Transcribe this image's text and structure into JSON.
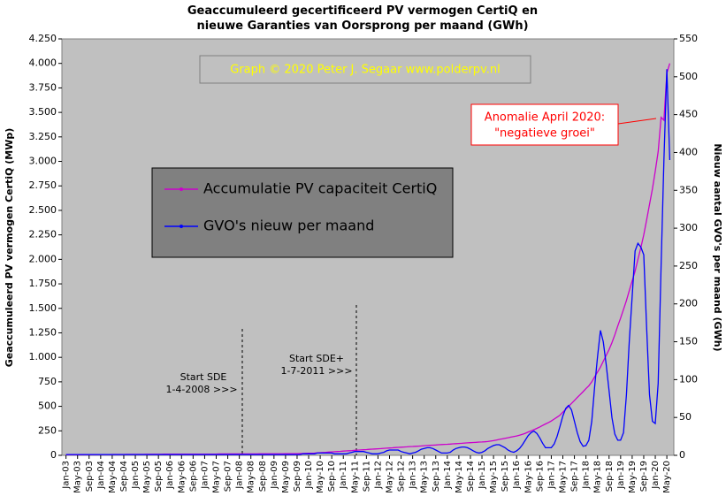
{
  "chart_data": {
    "type": "line",
    "title": "Geaccumuleerd gecertificeerd PV vermogen CertiQ en",
    "subtitle": "nieuwe Garanties van Oorsprong per maand (GWh)",
    "ylabel": "Geaccumuleerd PV vermogen CertiQ (MWp)",
    "y2label": "Nieuw aantal GVO's per maand (GWh)",
    "annotations": [
      "Graph  © 2020  Peter J. Segaar  www.polderpv.nl",
      "Anomalie  April 2020:",
      "\"negatieve groei\"",
      "Start SDE",
      "1-4-2008  >>>",
      "Start SDE+",
      "1-7-2011  >>>"
    ],
    "categories": [
      "Jan-03",
      null,
      null,
      null,
      "May-03",
      null,
      null,
      null,
      "Sep-03",
      null,
      null,
      null,
      "Jan-04",
      null,
      null,
      null,
      "May-04",
      null,
      null,
      null,
      "Sep-04",
      null,
      null,
      null,
      "Jan-05",
      null,
      null,
      null,
      "May-05",
      null,
      null,
      null,
      "Sep-05",
      null,
      null,
      null,
      "Jan-06",
      null,
      null,
      null,
      "May-06",
      null,
      null,
      null,
      "Sep-06",
      null,
      null,
      null,
      "Jan-07",
      null,
      null,
      null,
      "May-07",
      null,
      null,
      null,
      "Sep-07",
      null,
      null,
      null,
      "Jan-08",
      null,
      null,
      null,
      "May-08",
      null,
      null,
      null,
      "Sep-08",
      null,
      null,
      null,
      "Jan-09",
      null,
      null,
      null,
      "May-09",
      null,
      null,
      null,
      "Sep-09",
      null,
      null,
      null,
      "Jan-10",
      null,
      null,
      null,
      "May-10",
      null,
      null,
      null,
      "Sep-10",
      null,
      null,
      null,
      "Jan-11",
      null,
      null,
      null,
      "May-11",
      null,
      null,
      null,
      "Sep-11",
      null,
      null,
      null,
      "Jan-12",
      null,
      null,
      null,
      "May-12",
      null,
      null,
      null,
      "Sep-12",
      null,
      null,
      null,
      "Jan-13",
      null,
      null,
      null,
      "May-13",
      null,
      null,
      null,
      "Sep-13",
      null,
      null,
      null,
      "Jan-14",
      null,
      null,
      null,
      "May-14",
      null,
      null,
      null,
      "Sep-14",
      null,
      null,
      null,
      "Jan-15",
      null,
      null,
      null,
      "May-15",
      null,
      null,
      null,
      "Sep-15",
      null,
      null,
      null,
      "Jan-16",
      null,
      null,
      null,
      "May-16",
      null,
      null,
      null,
      "Sep-16",
      null,
      null,
      null,
      "Jan-17",
      null,
      null,
      null,
      "May-17",
      null,
      null,
      null,
      "Sep-17",
      null,
      null,
      null,
      "Jan-18",
      null,
      null,
      null,
      "May-18",
      null,
      null,
      null,
      "Sep-18",
      null,
      null,
      null,
      "Jan-19",
      null,
      null,
      null,
      "May-19",
      null,
      null,
      null,
      "Sep-19",
      null,
      null,
      null,
      "Jan-20",
      null,
      null,
      null,
      "May-20",
      null
    ],
    "series": [
      {
        "name": "Accumulatie PV capaciteit CertiQ",
        "color": "#cc00cc",
        "axis": "y",
        "values": [
          5,
          5,
          5,
          6,
          6,
          6,
          6,
          7,
          7,
          7,
          7,
          8,
          8,
          8,
          8,
          8,
          9,
          9,
          9,
          9,
          9,
          10,
          10,
          10,
          10,
          10,
          10,
          10,
          11,
          11,
          11,
          11,
          11,
          11,
          12,
          12,
          12,
          12,
          12,
          12,
          12,
          12,
          13,
          13,
          13,
          13,
          13,
          13,
          13,
          13,
          13,
          13,
          13,
          14,
          14,
          14,
          14,
          14,
          14,
          14,
          14,
          14,
          14,
          14,
          14,
          14,
          14,
          15,
          15,
          15,
          15,
          15,
          15,
          15,
          15,
          15,
          16,
          16,
          16,
          16,
          17,
          18,
          19,
          20,
          21,
          22,
          23,
          25,
          27,
          29,
          31,
          33,
          35,
          37,
          39,
          41,
          43,
          45,
          47,
          49,
          51,
          53,
          55,
          57,
          59,
          61,
          63,
          65,
          67,
          69,
          71,
          73,
          75,
          77,
          79,
          81,
          83,
          85,
          87,
          89,
          90,
          92,
          94,
          96,
          98,
          100,
          102,
          104,
          106,
          108,
          110,
          112,
          113,
          115,
          117,
          119,
          121,
          123,
          125,
          127,
          129,
          131,
          133,
          135,
          136,
          138,
          141,
          145,
          150,
          156,
          162,
          168,
          174,
          180,
          186,
          192,
          198,
          205,
          215,
          225,
          238,
          250,
          262,
          275,
          290,
          305,
          320,
          335,
          350,
          370,
          390,
          410,
          440,
          470,
          500,
          530,
          560,
          590,
          620,
          650,
          680,
          710,
          750,
          800,
          850,
          900,
          960,
          1020,
          1080,
          1150,
          1230,
          1320,
          1400,
          1490,
          1580,
          1680,
          1780,
          1880,
          2000,
          2120,
          2250,
          2400,
          2560,
          2720,
          2900,
          3100,
          3450,
          3420,
          3900,
          4000
        ]
      },
      {
        "name": "GVO's nieuw per maand",
        "color": "#0000ff",
        "axis": "y2",
        "values": [
          1,
          1,
          1,
          1,
          1,
          1,
          1,
          1,
          1,
          1,
          1,
          1,
          1,
          1,
          1,
          1,
          1,
          1,
          1,
          1,
          1,
          1,
          1,
          1,
          1,
          1,
          1,
          1,
          1,
          1,
          1,
          1,
          1,
          1,
          1,
          1,
          1,
          1,
          1,
          1,
          1,
          1,
          1,
          1,
          1,
          1,
          1,
          1,
          1,
          1,
          1,
          1,
          1,
          1,
          1,
          1,
          1,
          1,
          1,
          1,
          1,
          1,
          1,
          1,
          1,
          1,
          1,
          1,
          1,
          1,
          1,
          1,
          1,
          1,
          1,
          1,
          1,
          1,
          1,
          1,
          1,
          1,
          2,
          2,
          2,
          2,
          2,
          3,
          3,
          3,
          3,
          3,
          3,
          2,
          2,
          2,
          2,
          2,
          3,
          4,
          5,
          5,
          5,
          5,
          4,
          3,
          2,
          2,
          2,
          3,
          4,
          6,
          7,
          7,
          7,
          7,
          5,
          4,
          3,
          2,
          3,
          4,
          6,
          8,
          9,
          10,
          10,
          9,
          7,
          5,
          3,
          3,
          3,
          4,
          7,
          9,
          10,
          11,
          11,
          10,
          8,
          6,
          4,
          3,
          4,
          6,
          9,
          11,
          13,
          14,
          14,
          12,
          10,
          7,
          5,
          4,
          6,
          9,
          14,
          20,
          26,
          30,
          32,
          29,
          23,
          16,
          10,
          10,
          10,
          15,
          25,
          38,
          52,
          62,
          66,
          60,
          45,
          30,
          18,
          12,
          13,
          20,
          45,
          90,
          130,
          165,
          150,
          120,
          85,
          50,
          28,
          20,
          20,
          30,
          80,
          150,
          210,
          270,
          280,
          275,
          265,
          170,
          80,
          45,
          42,
          95,
          250,
          390,
          510,
          390
        ]
      }
    ],
    "ylim": [
      0,
      4250
    ],
    "yticks": [
      0,
      250,
      500,
      750,
      {
        "value": 1000,
        "label": "1.000"
      },
      {
        "value": 1250,
        "label": "1.250"
      },
      {
        "value": 1500,
        "label": "1.500"
      },
      {
        "value": 1750,
        "label": "1.750"
      },
      {
        "value": 2000,
        "label": "2.000"
      },
      {
        "value": 2250,
        "label": "2.250"
      },
      {
        "value": 2500,
        "label": "2.500"
      },
      {
        "value": 2750,
        "label": "2.750"
      },
      {
        "value": 3000,
        "label": "3.000"
      },
      {
        "value": 3250,
        "label": "3.250"
      },
      {
        "value": 3500,
        "label": "3.500"
      },
      {
        "value": 3750,
        "label": "3.750"
      },
      {
        "value": 4000,
        "label": "4.000"
      },
      {
        "value": 4250,
        "label": "4.250"
      }
    ],
    "y2lim": [
      0,
      550
    ],
    "y2ticks": [
      0,
      50,
      100,
      150,
      200,
      250,
      300,
      350,
      400,
      450,
      500,
      550
    ]
  }
}
